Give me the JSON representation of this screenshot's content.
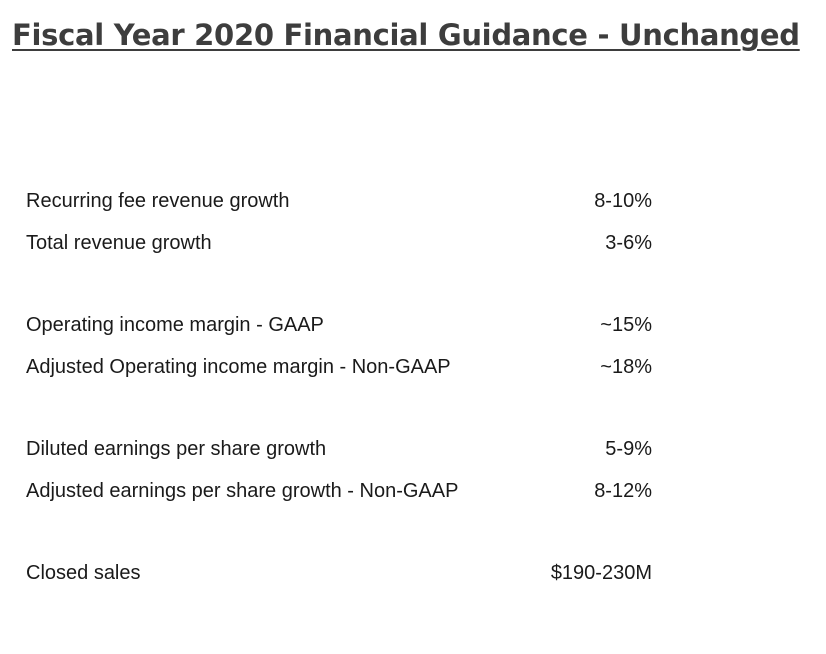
{
  "slide": {
    "title": "Fiscal Year 2020 Financial Guidance - Unchanged",
    "rows": [
      {
        "label": "Recurring fee revenue growth",
        "value": "8-10%"
      },
      {
        "label": "Total revenue growth",
        "value": "3-6%"
      },
      {
        "label": "Operating income margin - GAAP",
        "value": "~15%"
      },
      {
        "label": "Adjusted Operating income margin - Non-GAAP",
        "value": "~18%"
      },
      {
        "label": "Diluted earnings per share growth",
        "value": "5-9%"
      },
      {
        "label": "Adjusted earnings per share growth - Non-GAAP",
        "value": "8-12%"
      },
      {
        "label": "Closed sales",
        "value": "$190-230M"
      }
    ]
  }
}
